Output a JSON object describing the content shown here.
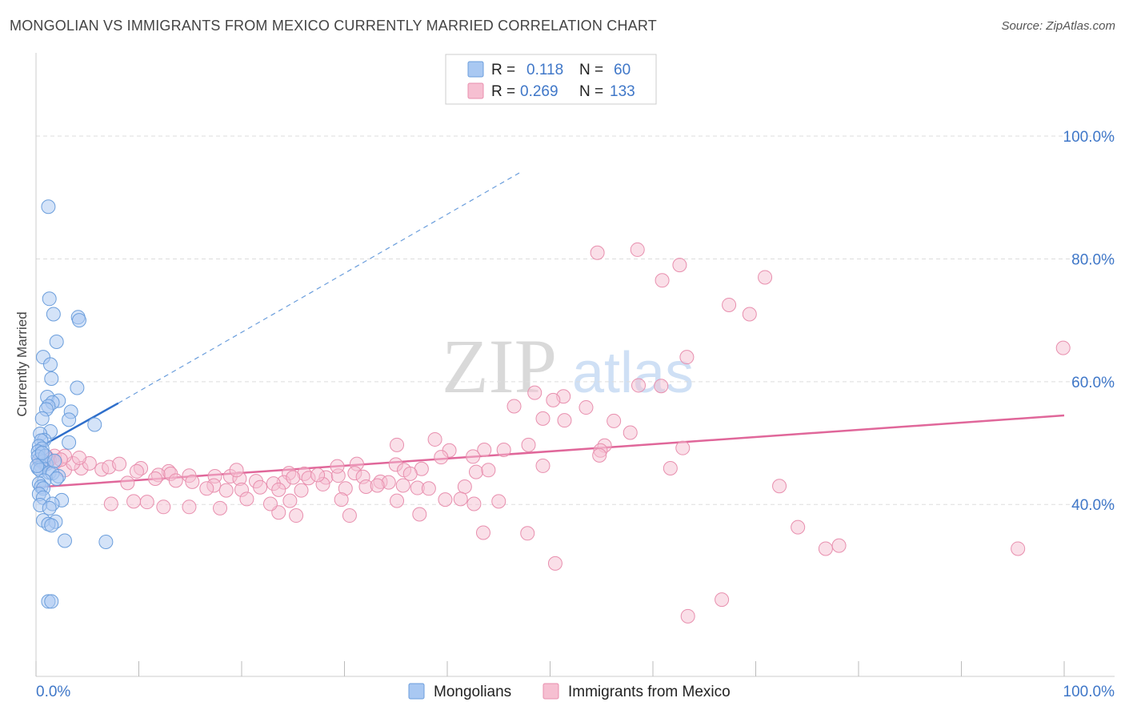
{
  "header": {
    "title": "MONGOLIAN VS IMMIGRANTS FROM MEXICO CURRENTLY MARRIED CORRELATION CHART",
    "source": "Source: ZipAtlas.com"
  },
  "watermark": {
    "zip": "ZIP",
    "atlas": "atlas"
  },
  "legend_top": {
    "rows": [
      {
        "r_label": "R =",
        "r_value": "0.118",
        "n_label": "N =",
        "n_value": "60"
      },
      {
        "r_label": "R =",
        "r_value": "0.269",
        "n_label": "N =",
        "n_value": "133"
      }
    ]
  },
  "colors": {
    "mongolians_fill": "#a9c8f2",
    "mongolians_stroke": "#6b9edc",
    "mongolians_line": "#2f6fcb",
    "mexico_fill": "#f6bfd1",
    "mexico_stroke": "#e88fae",
    "mexico_line": "#e0679a",
    "axis_text": "#3f77c8",
    "grid": "#dddddd"
  },
  "chart_data": {
    "type": "scatter",
    "title": "MONGOLIAN VS IMMIGRANTS FROM MEXICO CURRENTLY MARRIED CORRELATION CHART",
    "xlabel": "",
    "ylabel": "Currently Married",
    "xlim": [
      0,
      100
    ],
    "ylim": [
      12,
      112
    ],
    "x_tick_labels": [
      "0.0%",
      "100.0%"
    ],
    "y_ticks": [
      40,
      60,
      80,
      100
    ],
    "y_tick_labels": [
      "40.0%",
      "60.0%",
      "80.0%",
      "100.0%"
    ],
    "grid": true,
    "legend": [
      "Mongolians",
      "Immigrants from Mexico"
    ],
    "series": [
      {
        "name": "Mongolians",
        "R": 0.118,
        "N": 60,
        "trend": {
          "x0": 0,
          "y0": 49,
          "x1": 8,
          "y1": 56.5,
          "dashed_to_x": 47,
          "dashed_to_y": 94
        },
        "points": [
          [
            1.2,
            88.5
          ],
          [
            1.3,
            73.5
          ],
          [
            1.7,
            71
          ],
          [
            4.1,
            70.5
          ],
          [
            4.2,
            70
          ],
          [
            2,
            66.5
          ],
          [
            0.7,
            64
          ],
          [
            1.4,
            62.8
          ],
          [
            1.5,
            60.5
          ],
          [
            4,
            59
          ],
          [
            1.1,
            57.5
          ],
          [
            2.2,
            56.9
          ],
          [
            1.6,
            56.6
          ],
          [
            1.2,
            56
          ],
          [
            1,
            55.5
          ],
          [
            3.4,
            55.1
          ],
          [
            0.6,
            54
          ],
          [
            3.2,
            53.8
          ],
          [
            5.7,
            53
          ],
          [
            1.4,
            51.9
          ],
          [
            0.4,
            51.5
          ],
          [
            0.8,
            50.5
          ],
          [
            0.5,
            50.4
          ],
          [
            3.2,
            50.1
          ],
          [
            0.3,
            49.5
          ],
          [
            0.6,
            49.1
          ],
          [
            0.2,
            48.6
          ],
          [
            0.3,
            47.3
          ],
          [
            0.7,
            47
          ],
          [
            1,
            46.6
          ],
          [
            0.5,
            46.2
          ],
          [
            0.2,
            45.9
          ],
          [
            0.4,
            45.6
          ],
          [
            1.3,
            45.2
          ],
          [
            1.6,
            45.1
          ],
          [
            2.2,
            44.6
          ],
          [
            2,
            44.2
          ],
          [
            0.8,
            43.9
          ],
          [
            0.3,
            43.4
          ],
          [
            0.5,
            42.9
          ],
          [
            0.7,
            42.6
          ],
          [
            0.3,
            41.7
          ],
          [
            0.7,
            41.1
          ],
          [
            2.5,
            40.7
          ],
          [
            1.6,
            40.1
          ],
          [
            0.4,
            39.9
          ],
          [
            1.3,
            39.4
          ],
          [
            0.7,
            37.4
          ],
          [
            1.9,
            37.2
          ],
          [
            1.2,
            36.8
          ],
          [
            1.5,
            36.6
          ],
          [
            2.8,
            34.1
          ],
          [
            6.8,
            33.9
          ],
          [
            1.2,
            24.2
          ],
          [
            1.5,
            24.2
          ],
          [
            0.2,
            47.8
          ],
          [
            0.1,
            46.3
          ],
          [
            0.9,
            47.9
          ],
          [
            0.6,
            48.4
          ],
          [
            1.8,
            47.1
          ]
        ]
      },
      {
        "name": "Immigrants from Mexico",
        "R": 0.269,
        "N": 133,
        "trend": {
          "x0": 0,
          "y0": 42.8,
          "x1": 100,
          "y1": 54.5
        },
        "points": [
          [
            54.6,
            81
          ],
          [
            58.5,
            81.5
          ],
          [
            62.6,
            79
          ],
          [
            60.9,
            76.5
          ],
          [
            70.9,
            77
          ],
          [
            67.4,
            72.5
          ],
          [
            69.4,
            71
          ],
          [
            63.3,
            64
          ],
          [
            99.9,
            65.5
          ],
          [
            58.6,
            59.4
          ],
          [
            60.8,
            59.3
          ],
          [
            48.5,
            58.2
          ],
          [
            51.3,
            57.6
          ],
          [
            50.3,
            57
          ],
          [
            46.5,
            56
          ],
          [
            53.5,
            55.8
          ],
          [
            49.3,
            54
          ],
          [
            51.4,
            53.7
          ],
          [
            56.2,
            53.6
          ],
          [
            57.8,
            51.7
          ],
          [
            38.8,
            50.6
          ],
          [
            35.1,
            49.7
          ],
          [
            47.9,
            49.7
          ],
          [
            55.3,
            49.6
          ],
          [
            62.9,
            49.2
          ],
          [
            54.9,
            48.8
          ],
          [
            40.2,
            48.8
          ],
          [
            43.6,
            48.9
          ],
          [
            45.5,
            48.9
          ],
          [
            54.8,
            48
          ],
          [
            39.4,
            47.7
          ],
          [
            42.5,
            47.8
          ],
          [
            31.2,
            46.6
          ],
          [
            49.3,
            46.3
          ],
          [
            35,
            46.5
          ],
          [
            37.5,
            45.8
          ],
          [
            61.7,
            45.9
          ],
          [
            35.8,
            45.6
          ],
          [
            42.8,
            45.3
          ],
          [
            44,
            45.6
          ],
          [
            31,
            45.1
          ],
          [
            36.4,
            45
          ],
          [
            26.1,
            45
          ],
          [
            24.6,
            45.1
          ],
          [
            12.9,
            45.4
          ],
          [
            10.2,
            45.9
          ],
          [
            2.8,
            45.6
          ],
          [
            4.4,
            45.9
          ],
          [
            6.4,
            45.7
          ],
          [
            7.1,
            46.1
          ],
          [
            8.1,
            46.6
          ],
          [
            3.6,
            46.7
          ],
          [
            5.2,
            46.7
          ],
          [
            1.8,
            47.9
          ],
          [
            2.8,
            47.9
          ],
          [
            4.2,
            47.6
          ],
          [
            1,
            47.8
          ],
          [
            1.9,
            46.9
          ],
          [
            0.8,
            46.6
          ],
          [
            0.3,
            47.2
          ],
          [
            0.6,
            46.9
          ],
          [
            1.3,
            47.3
          ],
          [
            2.4,
            47.3
          ],
          [
            9.8,
            45.4
          ],
          [
            11.9,
            44.8
          ],
          [
            13.1,
            45
          ],
          [
            14.9,
            44.7
          ],
          [
            17.4,
            44.6
          ],
          [
            18.9,
            44.6
          ],
          [
            19.8,
            44.2
          ],
          [
            21.4,
            43.8
          ],
          [
            24.1,
            43.6
          ],
          [
            26.5,
            44.3
          ],
          [
            28.2,
            44.4
          ],
          [
            29.4,
            44.7
          ],
          [
            31.8,
            44.5
          ],
          [
            33.5,
            43.7
          ],
          [
            34.3,
            43.6
          ],
          [
            27.9,
            43.3
          ],
          [
            23.1,
            43.4
          ],
          [
            17.3,
            43.1
          ],
          [
            15.2,
            43.7
          ],
          [
            13.6,
            43.9
          ],
          [
            11.6,
            44.2
          ],
          [
            8.9,
            43.5
          ],
          [
            16.6,
            42.6
          ],
          [
            18.5,
            42.3
          ],
          [
            20,
            42.4
          ],
          [
            21.8,
            42.8
          ],
          [
            23.6,
            42.4
          ],
          [
            25.8,
            42.3
          ],
          [
            30.1,
            42.6
          ],
          [
            32.1,
            42.9
          ],
          [
            35.7,
            43.1
          ],
          [
            37.1,
            42.7
          ],
          [
            38.2,
            42.6
          ],
          [
            41.7,
            42.9
          ],
          [
            20.5,
            40.9
          ],
          [
            24.7,
            40.6
          ],
          [
            29.7,
            40.8
          ],
          [
            35.1,
            40.6
          ],
          [
            39.8,
            40.8
          ],
          [
            41.3,
            40.9
          ],
          [
            45,
            40.5
          ],
          [
            42.6,
            40.1
          ],
          [
            23.6,
            38.7
          ],
          [
            25.3,
            38.2
          ],
          [
            30.5,
            38.2
          ],
          [
            37.3,
            38.4
          ],
          [
            10.8,
            40.4
          ],
          [
            12.4,
            39.6
          ],
          [
            14.9,
            39.6
          ],
          [
            17.9,
            39.4
          ],
          [
            22.8,
            40.1
          ],
          [
            25,
            44.4
          ],
          [
            27.4,
            44.8
          ],
          [
            19.5,
            45.6
          ],
          [
            33.2,
            43.1
          ],
          [
            29.3,
            46.2
          ],
          [
            7.3,
            40.1
          ],
          [
            9.5,
            40.5
          ],
          [
            43.5,
            35.4
          ],
          [
            47.8,
            35.3
          ],
          [
            50.5,
            30.4
          ],
          [
            74.1,
            36.3
          ],
          [
            76.8,
            32.8
          ],
          [
            78.1,
            33.3
          ],
          [
            95.5,
            32.8
          ],
          [
            66.7,
            24.5
          ],
          [
            63.4,
            21.8
          ],
          [
            72.3,
            43
          ]
        ]
      }
    ]
  },
  "legend_bottom": {
    "items": [
      {
        "label": "Mongolians"
      },
      {
        "label": "Immigrants from Mexico"
      }
    ]
  }
}
